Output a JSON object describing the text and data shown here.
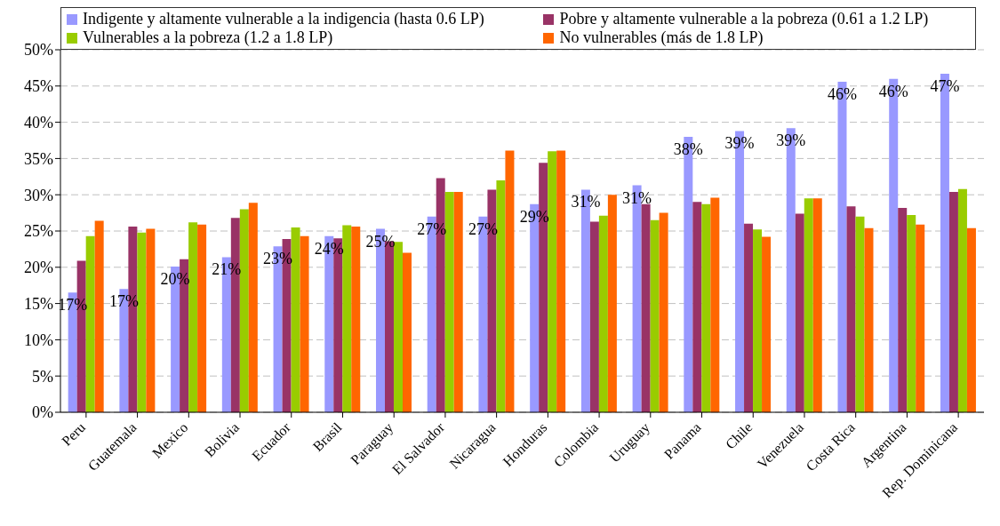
{
  "chart_data": {
    "type": "bar",
    "categories": [
      "Peru",
      "Guatemala",
      "Mexico",
      "Bolivia",
      "Ecuador",
      "Brasil",
      "Paraguay",
      "El Salvador",
      "Nicaragua",
      "Honduras",
      "Colombia",
      "Uruguay",
      "Panama",
      "Chile",
      "Venezuela",
      "Costa Rica",
      "Argentina",
      "Rep. Dominicana"
    ],
    "series": [
      {
        "name": "Indigente y altamente vulnerable a la indigencia (hasta 0.6 LP)",
        "color": "#9999ff",
        "values": [
          16.5,
          17,
          20.1,
          21.4,
          22.9,
          24.3,
          25.3,
          27,
          27,
          28.7,
          30.7,
          31.3,
          38,
          38.8,
          39.2,
          45.6,
          46,
          46.7
        ],
        "value_labels": [
          "17%",
          "17%",
          "20%",
          "21%",
          "23%",
          "24%",
          "25%",
          "27%",
          "27%",
          "29%",
          "31%",
          "31%",
          "38%",
          "39%",
          "39%",
          "46%",
          "46%",
          "47%"
        ]
      },
      {
        "name": "Pobre y altamente vulnerable a la pobreza (0.61 a 1.2 LP)",
        "color": "#993366",
        "values": [
          20.9,
          25.6,
          21.1,
          26.8,
          23.9,
          24.0,
          23.6,
          32.3,
          30.7,
          34.4,
          26.3,
          28.7,
          29.0,
          26.0,
          27.4,
          28.4,
          28.2,
          30.4
        ]
      },
      {
        "name": "Vulnerables a la pobreza  (1.2 a 1.8 LP)",
        "color": "#99cc00",
        "values": [
          24.3,
          24.8,
          26.2,
          28.0,
          25.5,
          25.8,
          23.5,
          30.4,
          32.0,
          36.0,
          27.1,
          26.5,
          28.7,
          25.2,
          29.5,
          27.0,
          27.2,
          30.8
        ]
      },
      {
        "name": "No vulnerables (más de 1.8 LP)",
        "color": "#ff6600",
        "values": [
          26.4,
          25.3,
          25.9,
          28.9,
          24.3,
          25.6,
          22.0,
          30.4,
          36.1,
          36.1,
          30.0,
          27.5,
          29.6,
          24.2,
          29.5,
          25.4,
          25.9,
          25.4
        ]
      }
    ],
    "ylim": [
      0,
      50
    ],
    "yticks": [
      {
        "value": 0,
        "label": "0%"
      },
      {
        "value": 5,
        "label": "5%"
      },
      {
        "value": 10,
        "label": "10%"
      },
      {
        "value": 15,
        "label": "15%"
      },
      {
        "value": 20,
        "label": "20%"
      },
      {
        "value": 25,
        "label": "25%"
      },
      {
        "value": 30,
        "label": "30%"
      },
      {
        "value": 35,
        "label": "35%"
      },
      {
        "value": 40,
        "label": "40%"
      },
      {
        "value": 45,
        "label": "45%"
      },
      {
        "value": 50,
        "label": "50%"
      }
    ],
    "grid": "y",
    "legend": "top"
  }
}
